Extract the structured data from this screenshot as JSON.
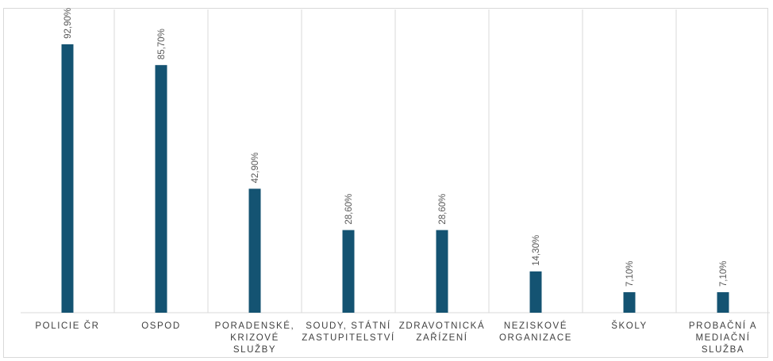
{
  "chart_data": {
    "type": "bar",
    "categories": [
      "POLICIE ČR",
      "OSPOD",
      "PORADENSKÉ,\nKRIZOVÉ SLUŽBY",
      "SOUDY, STÁTNÍ\nZASTUPITELSTVÍ",
      "ZDRAVOTNICKÁ\nZAŘÍZENÍ",
      "NEZISKOVÉ\nORGANIZACE",
      "ŠKOLY",
      "PROBAČNÍ A\nMEDIAČNÍ\nSLUŽBA"
    ],
    "values": [
      92.9,
      85.7,
      42.9,
      28.6,
      28.6,
      14.3,
      7.1,
      7.1
    ],
    "data_labels": [
      "92,90%",
      "85,70%",
      "42,90%",
      "28,60%",
      "28,60%",
      "14,30%",
      "7,10%",
      "7,10%"
    ],
    "title": "",
    "xlabel": "",
    "ylabel": "",
    "ylim": [
      0,
      100
    ],
    "grid": "vertical category separators",
    "legend": "none",
    "colors": {
      "bar": "#145372",
      "gridline": "#d9d9d9",
      "text": "#404040",
      "data_label": "#595959"
    }
  }
}
